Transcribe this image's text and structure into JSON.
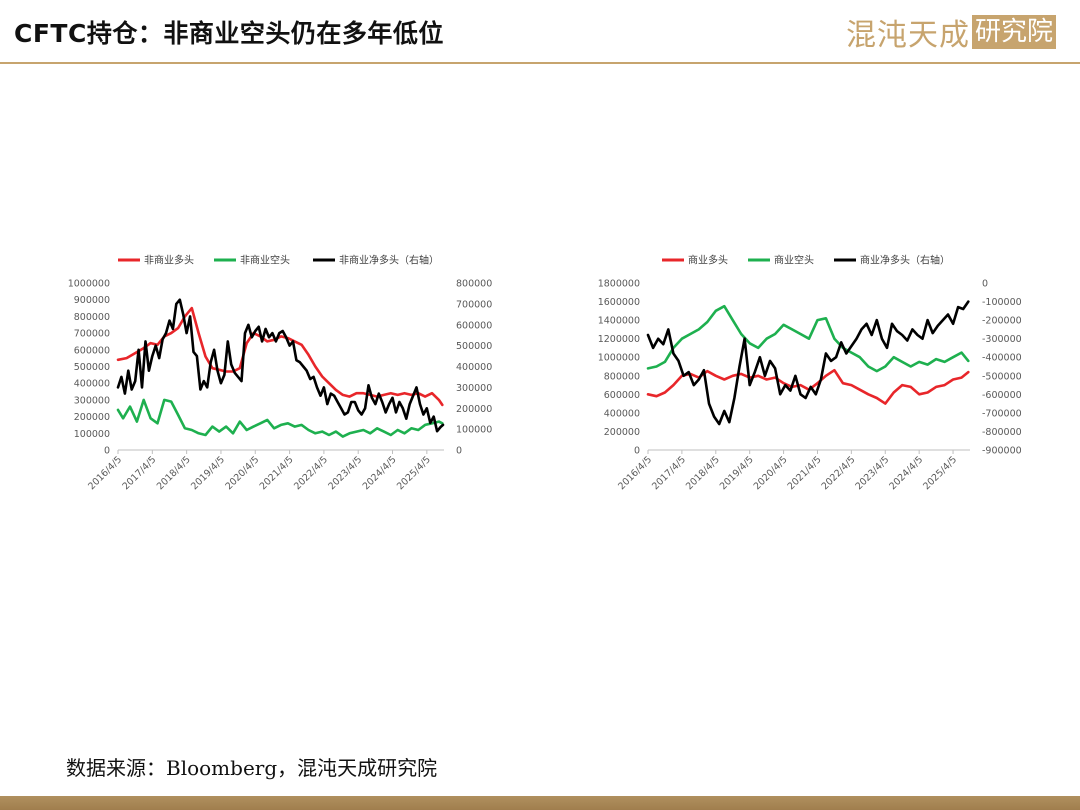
{
  "header": {
    "title": "CFTC持仓：非商业空头仍在多年低位",
    "logo_text": "混沌天成",
    "logo_box": "研究院"
  },
  "footer": {
    "source": "数据来源：Bloomberg，混沌天成研究院"
  },
  "colors": {
    "red": "#e8262a",
    "green": "#1eb04f",
    "black": "#000000",
    "brand": "#c7a46e",
    "axis": "#bfbfbf"
  },
  "chart_data": [
    {
      "type": "line",
      "x_labels": [
        "2016/4/5",
        "2017/4/5",
        "2018/4/5",
        "2019/4/5",
        "2020/4/5",
        "2021/4/5",
        "2022/4/5",
        "2023/4/5",
        "2024/4/5",
        "2025/4/5"
      ],
      "x_range": [
        2016.25,
        2025.75
      ],
      "y_left": {
        "ticks": [
          "0",
          "100000",
          "200000",
          "300000",
          "400000",
          "500000",
          "600000",
          "700000",
          "800000",
          "900000",
          "1000000"
        ],
        "range": [
          0,
          1000000
        ]
      },
      "y_right": {
        "ticks": [
          "0",
          "100000",
          "200000",
          "300000",
          "400000",
          "500000",
          "600000",
          "700000",
          "800000"
        ],
        "range": [
          0,
          800000
        ]
      },
      "legend": [
        "非商业多头",
        "非商业空头",
        "非商业净多头（右轴）"
      ],
      "series": [
        {
          "name": "非商业多头",
          "axis": "left",
          "color": "#e8262a",
          "x": [
            2016.25,
            2016.5,
            2016.75,
            2017.0,
            2017.2,
            2017.4,
            2017.6,
            2017.8,
            2018.0,
            2018.2,
            2018.4,
            2018.6,
            2018.8,
            2019.0,
            2019.2,
            2019.4,
            2019.6,
            2019.8,
            2020.0,
            2020.2,
            2020.4,
            2020.6,
            2020.8,
            2021.0,
            2021.2,
            2021.4,
            2021.6,
            2021.8,
            2022.0,
            2022.2,
            2022.4,
            2022.6,
            2022.8,
            2023.0,
            2023.2,
            2023.4,
            2023.6,
            2023.8,
            2024.0,
            2024.2,
            2024.4,
            2024.6,
            2024.8,
            2025.0,
            2025.2,
            2025.4,
            2025.6,
            2025.7
          ],
          "y": [
            540000,
            550000,
            580000,
            610000,
            640000,
            630000,
            680000,
            700000,
            730000,
            800000,
            850000,
            700000,
            560000,
            490000,
            480000,
            470000,
            470000,
            490000,
            640000,
            700000,
            680000,
            650000,
            660000,
            680000,
            670000,
            650000,
            630000,
            570000,
            500000,
            440000,
            400000,
            360000,
            330000,
            320000,
            340000,
            340000,
            330000,
            320000,
            330000,
            340000,
            330000,
            340000,
            330000,
            340000,
            320000,
            340000,
            300000,
            270000
          ]
        },
        {
          "name": "非商业空头",
          "axis": "left",
          "color": "#1eb04f",
          "x": [
            2016.25,
            2016.4,
            2016.6,
            2016.8,
            2017.0,
            2017.2,
            2017.4,
            2017.6,
            2017.8,
            2018.0,
            2018.2,
            2018.4,
            2018.6,
            2018.8,
            2019.0,
            2019.2,
            2019.4,
            2019.6,
            2019.8,
            2020.0,
            2020.2,
            2020.4,
            2020.6,
            2020.8,
            2021.0,
            2021.2,
            2021.4,
            2021.6,
            2021.8,
            2022.0,
            2022.2,
            2022.4,
            2022.6,
            2022.8,
            2023.0,
            2023.2,
            2023.4,
            2023.6,
            2023.8,
            2024.0,
            2024.2,
            2024.4,
            2024.6,
            2024.8,
            2025.0,
            2025.2,
            2025.4,
            2025.6,
            2025.7
          ],
          "y": [
            240000,
            190000,
            260000,
            170000,
            300000,
            190000,
            160000,
            300000,
            290000,
            210000,
            130000,
            120000,
            100000,
            90000,
            140000,
            110000,
            140000,
            100000,
            170000,
            120000,
            140000,
            160000,
            180000,
            130000,
            150000,
            160000,
            140000,
            150000,
            120000,
            100000,
            110000,
            90000,
            110000,
            80000,
            100000,
            110000,
            120000,
            100000,
            130000,
            110000,
            90000,
            120000,
            100000,
            130000,
            120000,
            150000,
            160000,
            170000,
            160000
          ]
        },
        {
          "name": "非商业净多头（右轴）",
          "axis": "right",
          "color": "#000000",
          "x": [
            2016.25,
            2016.35,
            2016.45,
            2016.55,
            2016.65,
            2016.75,
            2016.85,
            2016.95,
            2017.05,
            2017.15,
            2017.25,
            2017.35,
            2017.45,
            2017.55,
            2017.65,
            2017.75,
            2017.85,
            2017.95,
            2018.05,
            2018.15,
            2018.25,
            2018.35,
            2018.45,
            2018.55,
            2018.65,
            2018.75,
            2018.85,
            2018.95,
            2019.05,
            2019.15,
            2019.25,
            2019.35,
            2019.45,
            2019.55,
            2019.65,
            2019.75,
            2019.85,
            2019.95,
            2020.05,
            2020.15,
            2020.25,
            2020.35,
            2020.45,
            2020.55,
            2020.65,
            2020.75,
            2020.85,
            2020.95,
            2021.05,
            2021.15,
            2021.25,
            2021.35,
            2021.45,
            2021.55,
            2021.65,
            2021.75,
            2021.85,
            2021.95,
            2022.05,
            2022.15,
            2022.25,
            2022.35,
            2022.45,
            2022.55,
            2022.65,
            2022.75,
            2022.85,
            2022.95,
            2023.05,
            2023.15,
            2023.25,
            2023.35,
            2023.45,
            2023.55,
            2023.65,
            2023.75,
            2023.85,
            2023.95,
            2024.05,
            2024.15,
            2024.25,
            2024.35,
            2024.45,
            2024.55,
            2024.65,
            2024.75,
            2024.85,
            2024.95,
            2025.05,
            2025.15,
            2025.25,
            2025.35,
            2025.45,
            2025.55,
            2025.65,
            2025.72
          ],
          "y": [
            300000,
            350000,
            270000,
            380000,
            290000,
            330000,
            480000,
            300000,
            520000,
            380000,
            450000,
            500000,
            440000,
            530000,
            560000,
            620000,
            580000,
            700000,
            720000,
            650000,
            560000,
            640000,
            470000,
            450000,
            290000,
            330000,
            300000,
            420000,
            480000,
            380000,
            320000,
            360000,
            520000,
            410000,
            370000,
            350000,
            330000,
            560000,
            600000,
            540000,
            570000,
            590000,
            520000,
            580000,
            540000,
            560000,
            520000,
            560000,
            570000,
            540000,
            500000,
            520000,
            430000,
            420000,
            400000,
            380000,
            340000,
            350000,
            300000,
            260000,
            300000,
            220000,
            270000,
            260000,
            230000,
            200000,
            170000,
            180000,
            230000,
            230000,
            190000,
            170000,
            200000,
            310000,
            250000,
            220000,
            270000,
            230000,
            180000,
            220000,
            250000,
            180000,
            230000,
            200000,
            150000,
            220000,
            260000,
            300000,
            220000,
            170000,
            200000,
            130000,
            160000,
            90000,
            110000,
            120000
          ]
        }
      ]
    },
    {
      "type": "line",
      "x_labels": [
        "2016/4/5",
        "2017/4/5",
        "2018/4/5",
        "2019/4/5",
        "2020/4/5",
        "2021/4/5",
        "2022/4/5",
        "2023/4/5",
        "2024/4/5",
        "2025/4/5"
      ],
      "x_range": [
        2016.25,
        2025.75
      ],
      "y_left": {
        "ticks": [
          "0",
          "200000",
          "400000",
          "600000",
          "800000",
          "1000000",
          "1200000",
          "1400000",
          "1600000",
          "1800000"
        ],
        "range": [
          0,
          1800000
        ]
      },
      "y_right": {
        "ticks": [
          "-900000",
          "-800000",
          "-700000",
          "-600000",
          "-500000",
          "-400000",
          "-300000",
          "-200000",
          "-100000",
          "0"
        ],
        "range": [
          -900000,
          0
        ]
      },
      "legend": [
        "商业多头",
        "商业空头",
        "商业净多头（右轴）"
      ],
      "series": [
        {
          "name": "商业多头",
          "axis": "left",
          "color": "#e8262a",
          "x": [
            2016.25,
            2016.5,
            2016.75,
            2017.0,
            2017.25,
            2017.5,
            2017.75,
            2018.0,
            2018.25,
            2018.5,
            2018.75,
            2019.0,
            2019.25,
            2019.5,
            2019.75,
            2020.0,
            2020.25,
            2020.5,
            2020.75,
            2021.0,
            2021.25,
            2021.5,
            2021.75,
            2022.0,
            2022.25,
            2022.5,
            2022.75,
            2023.0,
            2023.25,
            2023.5,
            2023.75,
            2024.0,
            2024.25,
            2024.5,
            2024.75,
            2025.0,
            2025.25,
            2025.5,
            2025.7
          ],
          "y": [
            600000,
            580000,
            620000,
            700000,
            800000,
            820000,
            780000,
            850000,
            800000,
            760000,
            800000,
            820000,
            780000,
            800000,
            760000,
            780000,
            720000,
            680000,
            700000,
            650000,
            720000,
            800000,
            860000,
            720000,
            700000,
            650000,
            600000,
            560000,
            500000,
            620000,
            700000,
            680000,
            600000,
            620000,
            680000,
            700000,
            760000,
            780000,
            840000
          ]
        },
        {
          "name": "商业空头",
          "axis": "left",
          "color": "#1eb04f",
          "x": [
            2016.25,
            2016.5,
            2016.75,
            2017.0,
            2017.25,
            2017.5,
            2017.75,
            2018.0,
            2018.25,
            2018.5,
            2018.75,
            2019.0,
            2019.25,
            2019.5,
            2019.75,
            2020.0,
            2020.25,
            2020.5,
            2020.75,
            2021.0,
            2021.25,
            2021.5,
            2021.75,
            2022.0,
            2022.25,
            2022.5,
            2022.75,
            2023.0,
            2023.25,
            2023.5,
            2023.75,
            2024.0,
            2024.25,
            2024.5,
            2024.75,
            2025.0,
            2025.25,
            2025.5,
            2025.7
          ],
          "y": [
            880000,
            900000,
            950000,
            1100000,
            1200000,
            1250000,
            1300000,
            1380000,
            1500000,
            1550000,
            1400000,
            1250000,
            1150000,
            1100000,
            1200000,
            1250000,
            1350000,
            1300000,
            1250000,
            1200000,
            1400000,
            1420000,
            1200000,
            1100000,
            1050000,
            1000000,
            900000,
            850000,
            900000,
            1000000,
            950000,
            900000,
            950000,
            920000,
            980000,
            950000,
            1000000,
            1050000,
            960000
          ]
        },
        {
          "name": "商业净多头（右轴）",
          "axis": "right",
          "color": "#000000",
          "x": [
            2016.25,
            2016.4,
            2016.55,
            2016.7,
            2016.85,
            2017.0,
            2017.15,
            2017.3,
            2017.45,
            2017.6,
            2017.75,
            2017.9,
            2018.05,
            2018.2,
            2018.35,
            2018.5,
            2018.65,
            2018.8,
            2018.95,
            2019.1,
            2019.25,
            2019.4,
            2019.55,
            2019.7,
            2019.85,
            2020.0,
            2020.15,
            2020.3,
            2020.45,
            2020.6,
            2020.75,
            2020.9,
            2021.05,
            2021.2,
            2021.35,
            2021.5,
            2021.65,
            2021.8,
            2021.95,
            2022.1,
            2022.25,
            2022.4,
            2022.55,
            2022.7,
            2022.85,
            2023.0,
            2023.15,
            2023.3,
            2023.45,
            2023.6,
            2023.75,
            2023.9,
            2024.05,
            2024.2,
            2024.35,
            2024.5,
            2024.65,
            2024.8,
            2024.95,
            2025.1,
            2025.25,
            2025.4,
            2025.55,
            2025.7
          ],
          "y": [
            -280000,
            -350000,
            -300000,
            -330000,
            -250000,
            -380000,
            -420000,
            -500000,
            -480000,
            -550000,
            -520000,
            -470000,
            -650000,
            -720000,
            -760000,
            -690000,
            -750000,
            -620000,
            -450000,
            -300000,
            -550000,
            -480000,
            -400000,
            -500000,
            -420000,
            -460000,
            -600000,
            -550000,
            -580000,
            -500000,
            -600000,
            -620000,
            -560000,
            -600000,
            -520000,
            -380000,
            -420000,
            -400000,
            -320000,
            -380000,
            -340000,
            -300000,
            -250000,
            -220000,
            -280000,
            -200000,
            -300000,
            -350000,
            -220000,
            -260000,
            -280000,
            -310000,
            -250000,
            -280000,
            -300000,
            -200000,
            -270000,
            -230000,
            -200000,
            -170000,
            -220000,
            -130000,
            -140000,
            -100000
          ]
        }
      ]
    }
  ]
}
